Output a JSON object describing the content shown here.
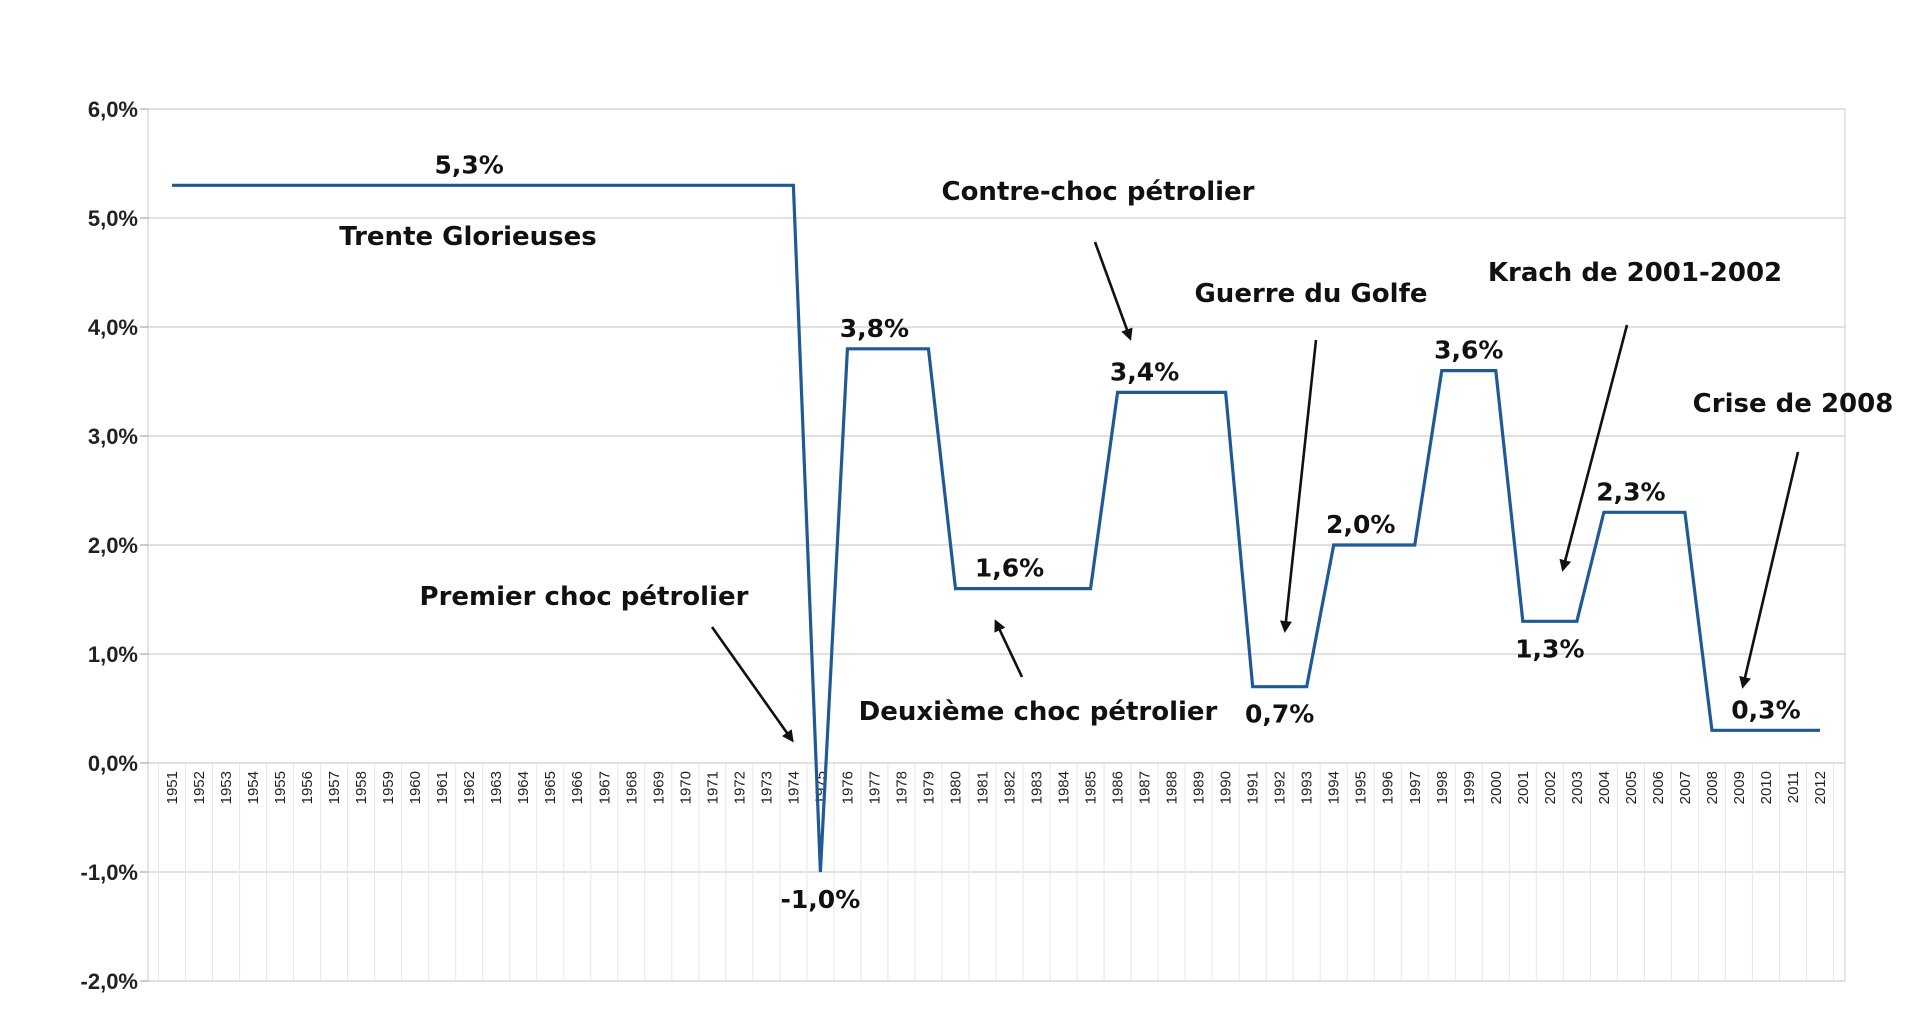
{
  "chart_data": {
    "type": "line",
    "title": "",
    "xlabel": "",
    "ylabel": "",
    "ylim": [
      -2.0,
      6.0
    ],
    "grid": true,
    "legend": "none",
    "y_ticks": [
      "-2,0%",
      "-1,0%",
      "0,0%",
      "1,0%",
      "2,0%",
      "3,0%",
      "4,0%",
      "5,0%",
      "6,0%"
    ],
    "y_tick_values": [
      -2,
      -1,
      0,
      1,
      2,
      3,
      4,
      5,
      6
    ],
    "categories": [
      "1951",
      "1952",
      "1953",
      "1954",
      "1955",
      "1956",
      "1957",
      "1958",
      "1959",
      "1960",
      "1961",
      "1962",
      "1963",
      "1964",
      "1965",
      "1966",
      "1967",
      "1968",
      "1969",
      "1970",
      "1971",
      "1972",
      "1973",
      "1974",
      "1975",
      "1976",
      "1977",
      "1978",
      "1979",
      "1980",
      "1981",
      "1982",
      "1983",
      "1984",
      "1985",
      "1986",
      "1987",
      "1988",
      "1989",
      "1990",
      "1991",
      "1992",
      "1993",
      "1994",
      "1995",
      "1996",
      "1997",
      "1998",
      "1999",
      "2000",
      "2001",
      "2002",
      "2003",
      "2004",
      "2005",
      "2006",
      "2007",
      "2008",
      "2009",
      "2010",
      "2011",
      "2012"
    ],
    "series": [
      {
        "color": "#1f5a96",
        "values": [
          5.3,
          5.3,
          5.3,
          5.3,
          5.3,
          5.3,
          5.3,
          5.3,
          5.3,
          5.3,
          5.3,
          5.3,
          5.3,
          5.3,
          5.3,
          5.3,
          5.3,
          5.3,
          5.3,
          5.3,
          5.3,
          5.3,
          5.3,
          5.3,
          -1.0,
          3.8,
          3.8,
          3.8,
          3.8,
          1.6,
          1.6,
          1.6,
          1.6,
          1.6,
          1.6,
          3.4,
          3.4,
          3.4,
          3.4,
          3.4,
          0.7,
          0.7,
          0.7,
          2.0,
          2.0,
          2.0,
          2.0,
          3.6,
          3.6,
          3.6,
          1.3,
          1.3,
          1.3,
          2.3,
          2.3,
          2.3,
          2.3,
          0.3,
          0.3,
          0.3,
          0.3,
          0.3
        ]
      }
    ],
    "data_labels": [
      {
        "text": "5,3%",
        "year": "1962",
        "value": 5.3,
        "placement": "above"
      },
      {
        "text": "-1,0%",
        "year": "1975",
        "value": -1.0,
        "placement": "below"
      },
      {
        "text": "3,8%",
        "year": "1977",
        "value": 3.8,
        "placement": "above"
      },
      {
        "text": "1,6%",
        "year": "1982",
        "value": 1.6,
        "placement": "above"
      },
      {
        "text": "3,4%",
        "year": "1987",
        "value": 3.4,
        "placement": "above"
      },
      {
        "text": "0,7%",
        "year": "1992",
        "value": 0.7,
        "placement": "below"
      },
      {
        "text": "2,0%",
        "year": "1995",
        "value": 2.0,
        "placement": "above"
      },
      {
        "text": "3,6%",
        "year": "1999",
        "value": 3.6,
        "placement": "above"
      },
      {
        "text": "1,3%",
        "year": "2002",
        "value": 1.3,
        "placement": "below"
      },
      {
        "text": "2,3%",
        "year": "2005",
        "value": 2.3,
        "placement": "above"
      },
      {
        "text": "0,3%",
        "year": "2010",
        "value": 0.3,
        "placement": "above"
      }
    ],
    "annotations": [
      {
        "text": "Trente Glorieuses"
      },
      {
        "text": "Premier choc pétrolier"
      },
      {
        "text": "Deuxième choc pétrolier"
      },
      {
        "text": "Contre-choc pétrolier"
      },
      {
        "text": "Guerre du Golfe"
      },
      {
        "text": "Krach de 2001-2002"
      },
      {
        "text": "Crise de 2008"
      }
    ]
  }
}
